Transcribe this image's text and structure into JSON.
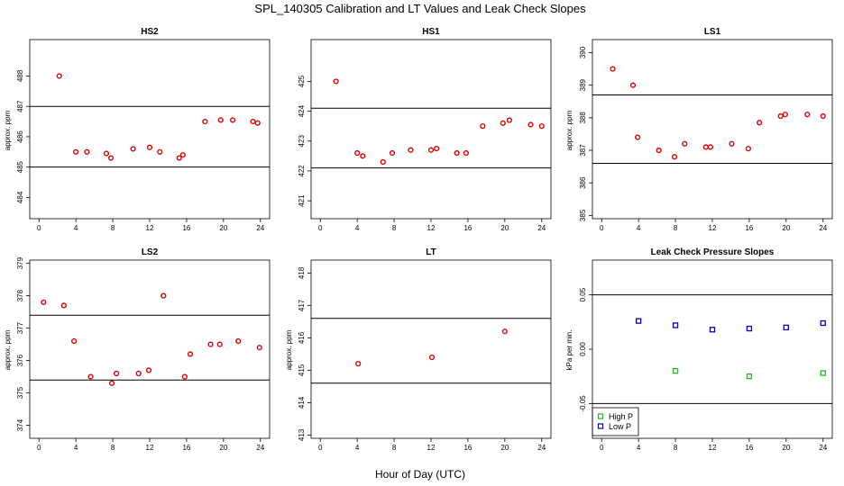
{
  "figure": {
    "title": "SPL_140305  Calibration and LT Values and Leak Check Slopes",
    "xlabel": "Hour of Day (UTC)"
  },
  "colors": {
    "cal": "#dd0000",
    "high": "#22bb22",
    "low": "#0000cc",
    "axis": "#000000"
  },
  "chart_data": [
    {
      "type": "scatter",
      "title": "HS2",
      "ylabel": "approx. ppm",
      "xlim": [
        -1,
        25
      ],
      "ylim": [
        483.3,
        489.2
      ],
      "xticks": [
        0,
        4,
        8,
        12,
        16,
        20,
        24
      ],
      "yticks": [
        484,
        485,
        486,
        487,
        488
      ],
      "hlines": [
        487.0,
        485.0
      ],
      "series": [
        {
          "name": "cal",
          "color": "#dd0000",
          "x": [
            2.2,
            4.0,
            5.2,
            7.3,
            7.8,
            10.2,
            12.0,
            13.1,
            15.2,
            15.6,
            18.0,
            19.7,
            21.0,
            23.2,
            23.7
          ],
          "y": [
            488.0,
            485.5,
            485.5,
            485.45,
            485.3,
            485.6,
            485.65,
            485.5,
            485.3,
            485.4,
            486.5,
            486.55,
            486.55,
            486.5,
            486.45
          ]
        }
      ]
    },
    {
      "type": "scatter",
      "title": "HS1",
      "ylabel": "",
      "xlim": [
        -1,
        25
      ],
      "ylim": [
        420.4,
        426.4
      ],
      "xticks": [
        0,
        4,
        8,
        12,
        16,
        20,
        24
      ],
      "yticks": [
        421,
        422,
        423,
        424,
        425
      ],
      "hlines": [
        424.1,
        422.1
      ],
      "series": [
        {
          "name": "cal",
          "color": "#dd0000",
          "x": [
            1.7,
            4.0,
            4.6,
            6.8,
            7.8,
            9.8,
            12.0,
            12.6,
            14.8,
            15.8,
            17.6,
            19.8,
            20.5,
            22.8,
            24.0
          ],
          "y": [
            425.0,
            422.6,
            422.5,
            422.3,
            422.6,
            422.7,
            422.7,
            422.75,
            422.6,
            422.6,
            423.5,
            423.6,
            423.7,
            423.55,
            423.5
          ]
        }
      ]
    },
    {
      "type": "scatter",
      "title": "LS1",
      "ylabel": "approx. ppm",
      "xlim": [
        -1,
        25
      ],
      "ylim": [
        384.9,
        390.4
      ],
      "xticks": [
        0,
        4,
        8,
        12,
        16,
        20,
        24
      ],
      "yticks": [
        385,
        386,
        387,
        388,
        389,
        390
      ],
      "hlines": [
        388.7,
        386.6
      ],
      "series": [
        {
          "name": "cal",
          "color": "#dd0000",
          "x": [
            1.2,
            3.4,
            3.9,
            6.2,
            7.9,
            9.0,
            11.3,
            11.8,
            14.1,
            15.9,
            17.1,
            19.4,
            19.9,
            22.3,
            24.0
          ],
          "y": [
            389.5,
            389.0,
            387.4,
            387.0,
            386.8,
            387.2,
            387.1,
            387.1,
            387.2,
            387.05,
            387.85,
            388.05,
            388.1,
            388.1,
            388.05
          ]
        }
      ]
    },
    {
      "type": "scatter",
      "title": "LS2",
      "ylabel": "approx. ppm",
      "xlim": [
        -1,
        25
      ],
      "ylim": [
        373.6,
        379.1
      ],
      "xticks": [
        0,
        4,
        8,
        12,
        16,
        20,
        24
      ],
      "yticks": [
        374,
        375,
        376,
        377,
        378,
        379
      ],
      "hlines": [
        377.4,
        375.4
      ],
      "series": [
        {
          "name": "cal",
          "color": "#dd0000",
          "x": [
            0.5,
            2.7,
            3.8,
            5.6,
            7.9,
            8.4,
            10.8,
            11.9,
            13.5,
            15.8,
            16.4,
            18.6,
            19.6,
            21.6,
            23.9
          ],
          "y": [
            377.8,
            377.7,
            376.6,
            375.5,
            375.3,
            375.6,
            375.6,
            375.7,
            378.0,
            375.5,
            376.2,
            376.5,
            376.5,
            376.6,
            376.4
          ]
        }
      ]
    },
    {
      "type": "scatter",
      "title": "LT",
      "ylabel": "approx. ppm",
      "xlim": [
        -1,
        25
      ],
      "ylim": [
        412.9,
        418.4
      ],
      "xticks": [
        0,
        4,
        8,
        12,
        16,
        20,
        24
      ],
      "yticks": [
        413,
        414,
        415,
        416,
        417,
        418
      ],
      "hlines": [
        416.6,
        414.6
      ],
      "series": [
        {
          "name": "cal",
          "color": "#dd0000",
          "x": [
            4.1,
            12.1,
            20.0
          ],
          "y": [
            415.2,
            415.4,
            416.2
          ]
        }
      ]
    },
    {
      "type": "scatter",
      "title": "Leak Check Pressure Slopes",
      "ylabel": "kPa per min.",
      "xlim": [
        -1,
        25
      ],
      "ylim": [
        -0.082,
        0.082
      ],
      "xticks": [
        0,
        4,
        8,
        12,
        16,
        20,
        24
      ],
      "yticks": [
        -0.05,
        0.0,
        0.05
      ],
      "ytick_labels": [
        "-0.05",
        "0.00",
        "0.05"
      ],
      "hlines": [
        0.05,
        -0.05
      ],
      "series": [
        {
          "name": "High P",
          "color": "#22bb22",
          "x": [
            8,
            16,
            24
          ],
          "y": [
            -0.02,
            -0.025,
            -0.022
          ]
        },
        {
          "name": "Low P",
          "color": "#0000cc",
          "x": [
            4,
            8,
            12,
            16,
            20,
            24
          ],
          "y": [
            0.026,
            0.022,
            0.018,
            0.019,
            0.02,
            0.024
          ]
        }
      ],
      "legend": {
        "position": "bottom-left",
        "entries": [
          "High P",
          "Low P"
        ]
      }
    }
  ]
}
